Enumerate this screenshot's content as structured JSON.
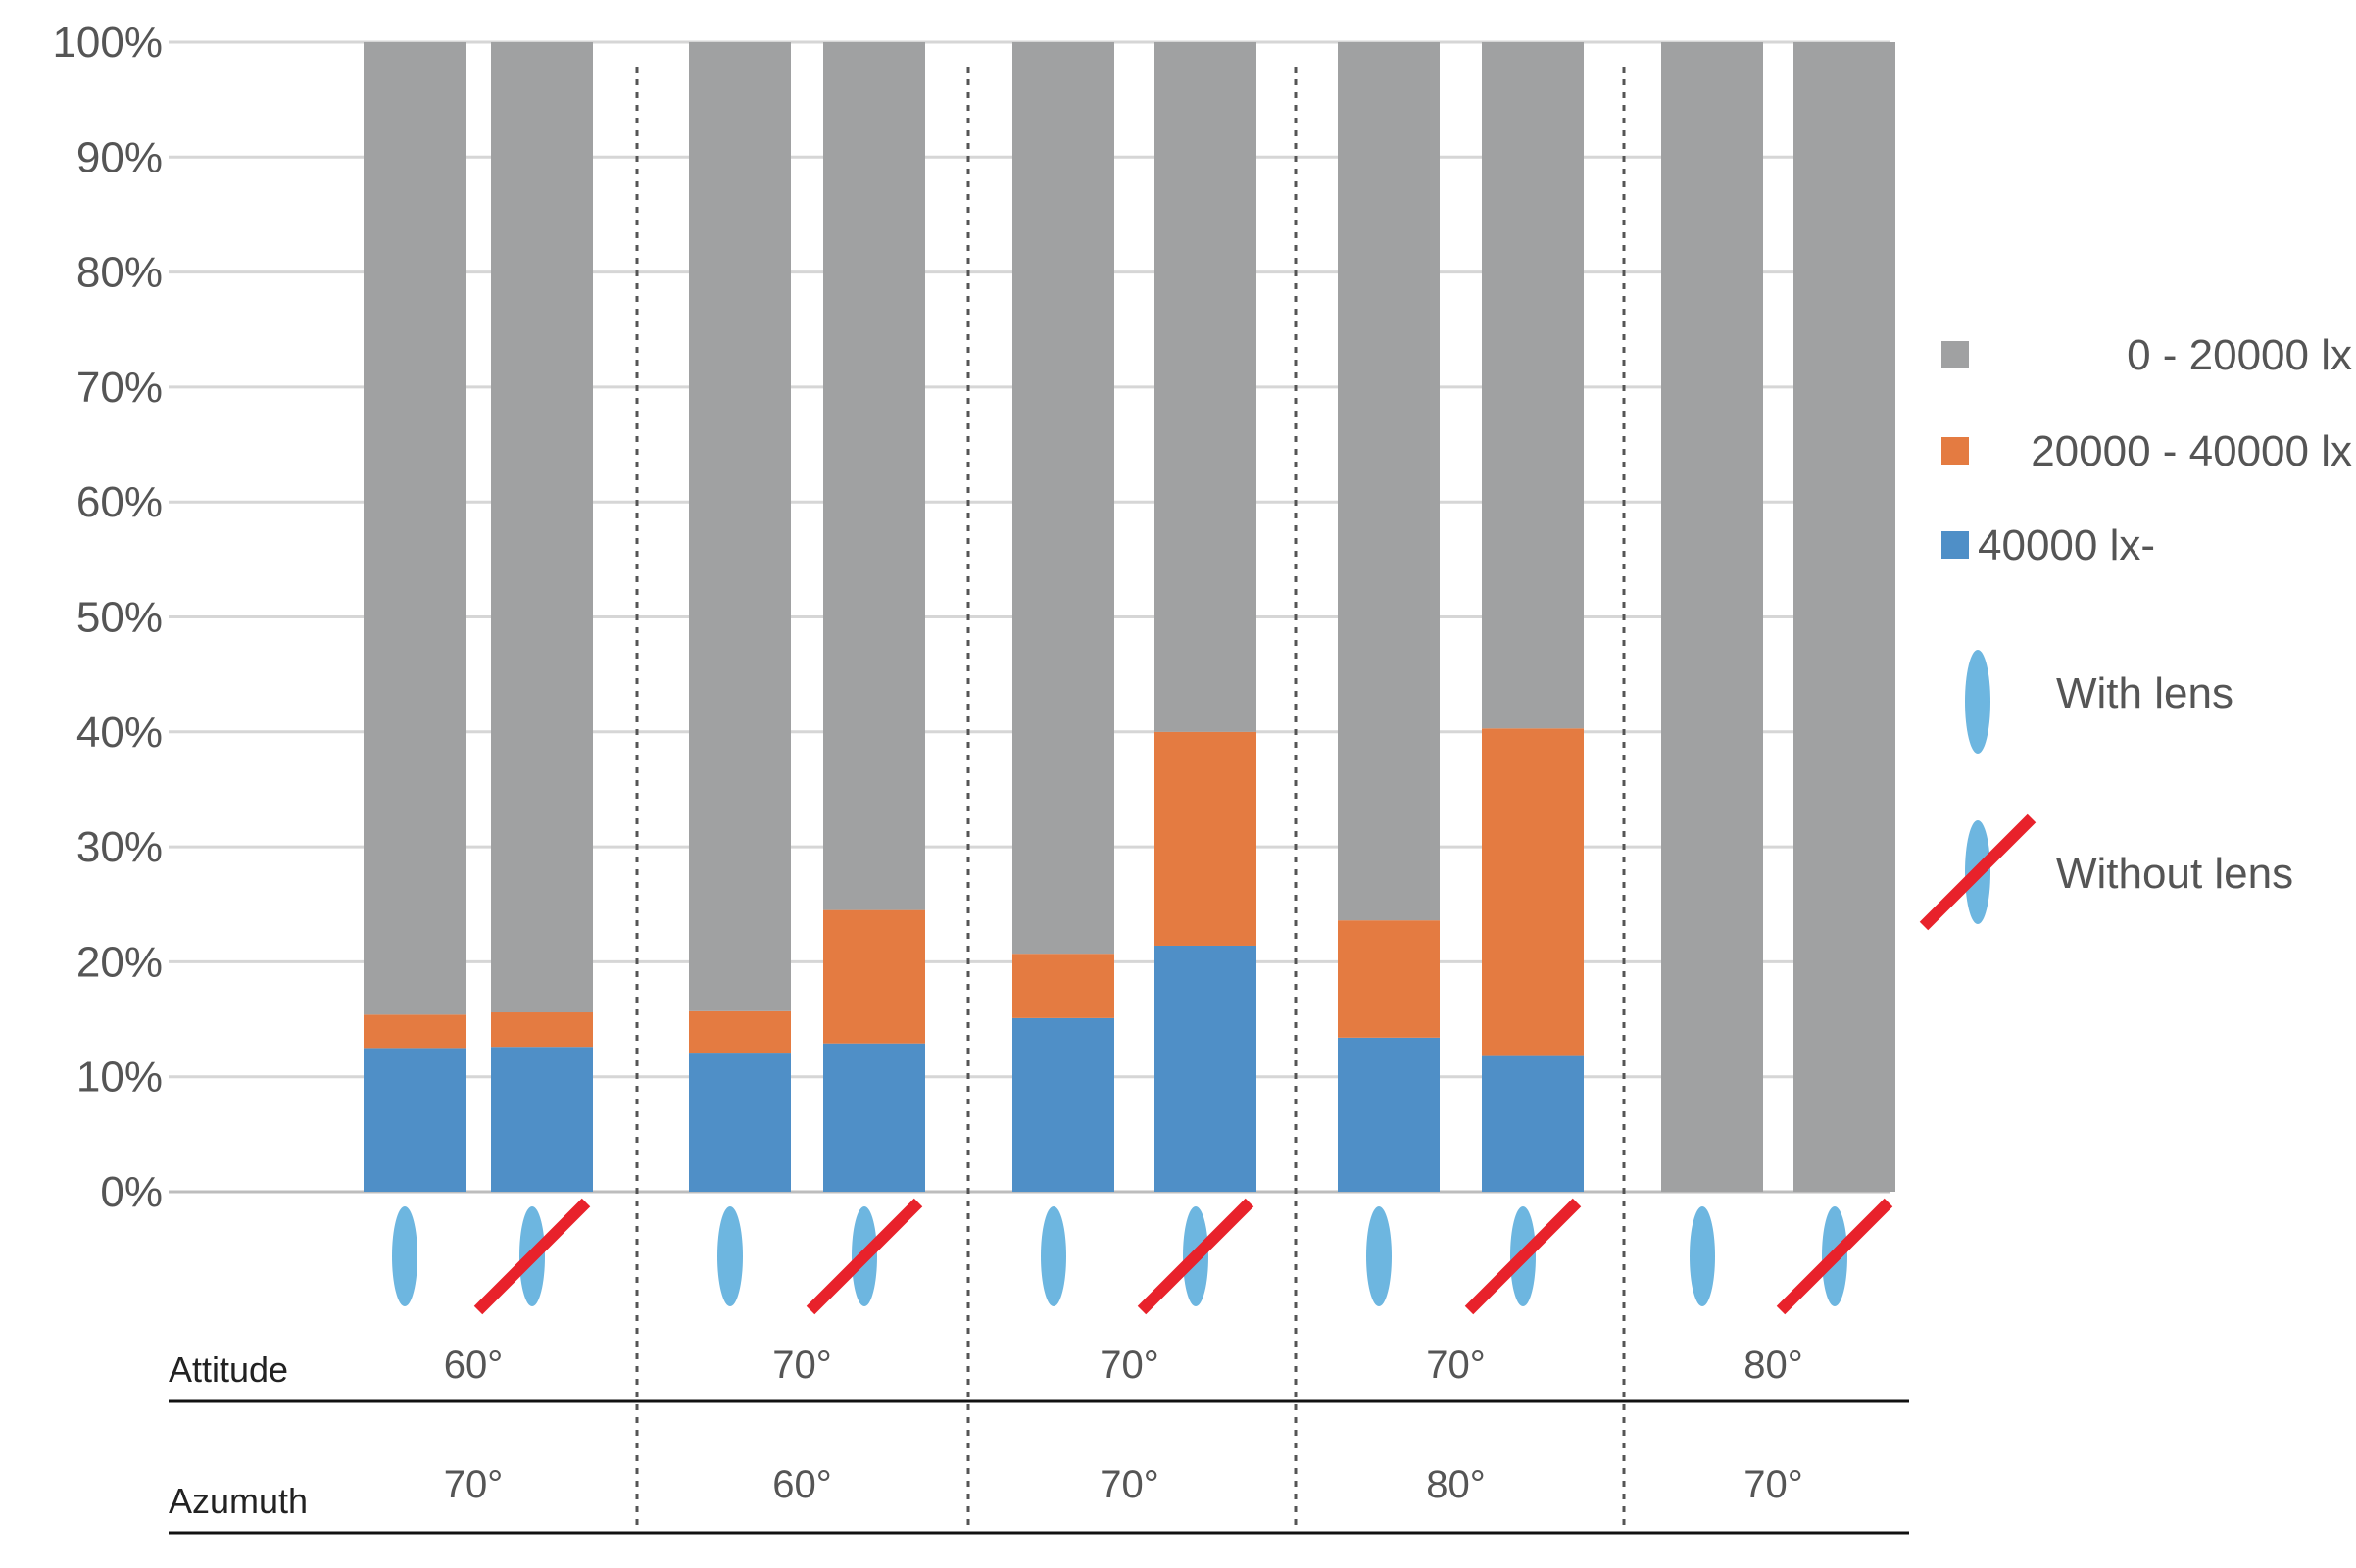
{
  "chart_data": {
    "type": "bar",
    "stacked": true,
    "normalized_percent": true,
    "ylim": [
      0,
      100
    ],
    "yticks": [
      0,
      10,
      20,
      30,
      40,
      50,
      60,
      70,
      80,
      90,
      100
    ],
    "ytick_suffix": "%",
    "grid": true,
    "categories": [
      "60°/70° with lens",
      "60°/70° without lens",
      "70°/60° with lens",
      "70°/60° without lens",
      "70°/70° with lens",
      "70°/70° without lens",
      "70°/80° with lens",
      "70°/80° without lens",
      "80°/70° with lens",
      "80°/70° without lens"
    ],
    "lens": [
      true,
      false,
      true,
      false,
      true,
      false,
      true,
      false,
      true,
      false
    ],
    "series": [
      {
        "name": "40000 lx-",
        "color": "#4f8fc7",
        "values": [
          12.5,
          12.6,
          12.1,
          12.9,
          15.1,
          21.4,
          13.4,
          11.8,
          0,
          0
        ]
      },
      {
        "name": "20000 - 40000 lx",
        "color": "#e47b41",
        "values": [
          2.9,
          3.0,
          3.6,
          11.6,
          5.6,
          18.6,
          10.2,
          28.5,
          0,
          0
        ]
      },
      {
        "name": "0 - 20000 lx",
        "color": "#a0a1a2",
        "values": [
          84.6,
          84.4,
          84.3,
          75.5,
          79.3,
          60.0,
          76.4,
          59.7,
          100,
          100
        ]
      }
    ],
    "legend": {
      "position": "right",
      "entries": [
        {
          "label": "0 - 20000 lx",
          "color": "#a0a1a2"
        },
        {
          "label": "20000 - 40000 lx",
          "color": "#e47b41"
        },
        {
          "label": "40000 lx-",
          "color": "#4f8fc7"
        },
        {
          "label": "With lens",
          "icon": "lens-icon"
        },
        {
          "label": "Without lens",
          "icon": "lens-crossed-icon"
        }
      ]
    },
    "groups": [
      {
        "attitude": "60°",
        "azimuth": "70°"
      },
      {
        "attitude": "70°",
        "azimuth": "60°"
      },
      {
        "attitude": "70°",
        "azimuth": "70°"
      },
      {
        "attitude": "70°",
        "azimuth": "80°"
      },
      {
        "attitude": "80°",
        "azimuth": "70°"
      }
    ],
    "row_labels": {
      "attitude": "Attitude",
      "azimuth": "Azumuth"
    },
    "colors": {
      "lens": "#6db6e0",
      "cross": "#e8222b",
      "grid": "#d6d6d6",
      "divider": "#555555"
    }
  }
}
